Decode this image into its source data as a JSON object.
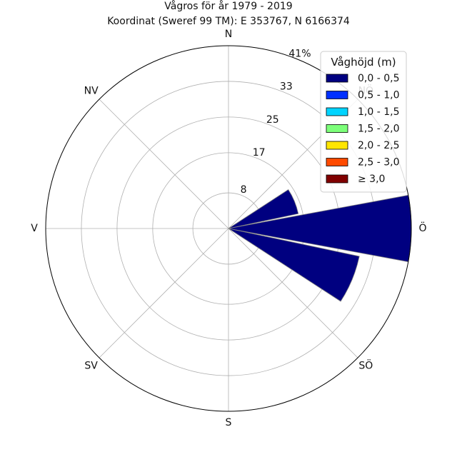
{
  "chart_data": {
    "type": "windrose",
    "title": "Vågros för år 1979 - 2019",
    "subtitle": "Koordinat (Sweref 99 TM): E 353767, N 6166374",
    "directions": [
      "N",
      "NÖ",
      "Ö",
      "SÖ",
      "S",
      "SV",
      "V",
      "NV"
    ],
    "radial_ticks": [
      "8",
      "17",
      "25",
      "33",
      "41%"
    ],
    "rmax": 41,
    "grid": true,
    "legend": {
      "title": "Våghöjd (m)",
      "placement": "top-right",
      "entries": [
        {
          "label": "0,0 - 0,5",
          "color": "#000080"
        },
        {
          "label": "0,5 - 1,0",
          "color": "#0030ff"
        },
        {
          "label": "1,0 - 1,5",
          "color": "#00d4ff"
        },
        {
          "label": "1,5 - 2,0",
          "color": "#7dff7a"
        },
        {
          "label": "2,0 - 2,5",
          "color": "#ffe600"
        },
        {
          "label": "2,5 - 3,0",
          "color": "#ff4a00"
        },
        {
          "label": "≥ 3,0",
          "color": "#800000"
        }
      ]
    },
    "series": [
      {
        "name": "0,0 - 0,5",
        "color": "#000080",
        "bars": [
          {
            "direction_deg": 67.5,
            "value": 16
          },
          {
            "direction_deg": 90,
            "value": 42
          },
          {
            "direction_deg": 112.5,
            "value": 30
          }
        ]
      }
    ]
  }
}
